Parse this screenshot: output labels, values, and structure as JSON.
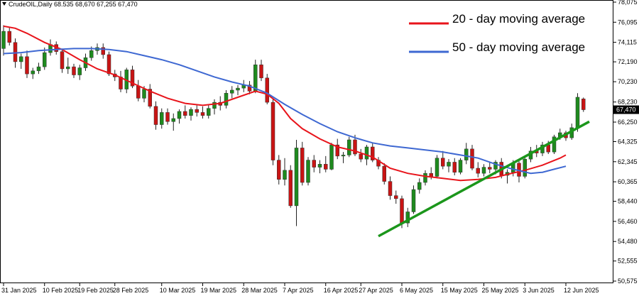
{
  "header": {
    "symbol_line": "CrudeOIL,Daily  68.535 68,670 67,255 67,470"
  },
  "chart_data": {
    "type": "candlestick",
    "title": "",
    "xlabel": "",
    "ylabel": "",
    "ylim": [
      50.575,
      78.075
    ],
    "y_ticks": [
      {
        "value": 78.075,
        "label": "78,075"
      },
      {
        "value": 76.095,
        "label": "76,095"
      },
      {
        "value": 74.115,
        "label": "74,115"
      },
      {
        "value": 72.19,
        "label": "72,190"
      },
      {
        "value": 70.23,
        "label": "70,230"
      },
      {
        "value": 68.23,
        "label": "68,230"
      },
      {
        "value": 66.25,
        "label": "66,250"
      },
      {
        "value": 64.325,
        "label": "64,325"
      },
      {
        "value": 62.345,
        "label": "62,345"
      },
      {
        "value": 60.365,
        "label": "60,365"
      },
      {
        "value": 58.44,
        "label": "58,440"
      },
      {
        "value": 56.46,
        "label": "56,460"
      },
      {
        "value": 54.48,
        "label": "54,480"
      },
      {
        "value": 52.555,
        "label": "52,555"
      },
      {
        "value": 50.575,
        "label": "50,575"
      }
    ],
    "x_ticks": [
      {
        "index": 0,
        "label": "31 Jan 2025"
      },
      {
        "index": 7,
        "label": "10 Feb 2025"
      },
      {
        "index": 13,
        "label": "19 Feb 2025"
      },
      {
        "index": 19,
        "label": "28 Feb 2025"
      },
      {
        "index": 27,
        "label": "10 Mar 2025"
      },
      {
        "index": 34,
        "label": "19 Mar 2025"
      },
      {
        "index": 41,
        "label": "28 Mar 2025"
      },
      {
        "index": 48,
        "label": "7 Apr 2025"
      },
      {
        "index": 55,
        "label": "16 Apr 2025"
      },
      {
        "index": 61,
        "label": "27 Apr 2025"
      },
      {
        "index": 68,
        "label": "6 May 2025"
      },
      {
        "index": 75,
        "label": "15 May 2025"
      },
      {
        "index": 82,
        "label": "25 May 2025"
      },
      {
        "index": 89,
        "label": "3 Jun 2025"
      },
      {
        "index": 96,
        "label": "12 Jun 2025"
      }
    ],
    "candles": [
      {
        "o": 73.5,
        "h": 75.8,
        "l": 72.8,
        "c": 75.2
      },
      {
        "o": 75.2,
        "h": 75.6,
        "l": 73.8,
        "c": 74.1
      },
      {
        "o": 74.1,
        "h": 74.5,
        "l": 71.6,
        "c": 72.2
      },
      {
        "o": 72.2,
        "h": 73.0,
        "l": 71.5,
        "c": 72.7
      },
      {
        "o": 72.7,
        "h": 73.3,
        "l": 70.6,
        "c": 71.0
      },
      {
        "o": 71.0,
        "h": 71.6,
        "l": 70.5,
        "c": 71.3
      },
      {
        "o": 71.3,
        "h": 72.1,
        "l": 71.0,
        "c": 71.7
      },
      {
        "o": 71.7,
        "h": 73.6,
        "l": 71.4,
        "c": 73.1
      },
      {
        "o": 73.1,
        "h": 74.4,
        "l": 72.8,
        "c": 73.9
      },
      {
        "o": 73.9,
        "h": 74.2,
        "l": 72.9,
        "c": 73.2
      },
      {
        "o": 73.2,
        "h": 73.5,
        "l": 71.1,
        "c": 71.5
      },
      {
        "o": 71.5,
        "h": 72.6,
        "l": 71.0,
        "c": 71.7
      },
      {
        "o": 71.7,
        "h": 72.0,
        "l": 70.6,
        "c": 70.9
      },
      {
        "o": 70.9,
        "h": 71.9,
        "l": 70.4,
        "c": 71.6
      },
      {
        "o": 71.6,
        "h": 73.0,
        "l": 71.3,
        "c": 72.6
      },
      {
        "o": 72.6,
        "h": 73.7,
        "l": 72.3,
        "c": 73.3
      },
      {
        "o": 73.3,
        "h": 74.0,
        "l": 72.9,
        "c": 73.6
      },
      {
        "o": 73.6,
        "h": 74.0,
        "l": 72.5,
        "c": 72.9
      },
      {
        "o": 72.9,
        "h": 73.2,
        "l": 70.8,
        "c": 71.0
      },
      {
        "o": 71.0,
        "h": 71.4,
        "l": 70.3,
        "c": 70.7
      },
      {
        "o": 70.7,
        "h": 71.3,
        "l": 69.2,
        "c": 69.5
      },
      {
        "o": 69.5,
        "h": 71.6,
        "l": 69.1,
        "c": 71.4
      },
      {
        "o": 71.4,
        "h": 71.8,
        "l": 69.6,
        "c": 69.8
      },
      {
        "o": 69.8,
        "h": 70.4,
        "l": 68.3,
        "c": 68.6
      },
      {
        "o": 68.6,
        "h": 69.8,
        "l": 68.2,
        "c": 69.5
      },
      {
        "o": 69.5,
        "h": 70.0,
        "l": 67.6,
        "c": 67.8
      },
      {
        "o": 67.8,
        "h": 68.3,
        "l": 65.5,
        "c": 66.0
      },
      {
        "o": 66.0,
        "h": 67.6,
        "l": 65.6,
        "c": 67.2
      },
      {
        "o": 67.2,
        "h": 67.6,
        "l": 66.0,
        "c": 66.3
      },
      {
        "o": 66.3,
        "h": 67.1,
        "l": 65.4,
        "c": 66.6
      },
      {
        "o": 66.6,
        "h": 67.5,
        "l": 66.1,
        "c": 67.3
      },
      {
        "o": 67.3,
        "h": 67.9,
        "l": 66.6,
        "c": 66.9
      },
      {
        "o": 66.9,
        "h": 67.7,
        "l": 66.4,
        "c": 67.5
      },
      {
        "o": 67.5,
        "h": 67.9,
        "l": 66.8,
        "c": 67.2
      },
      {
        "o": 67.2,
        "h": 67.8,
        "l": 66.6,
        "c": 66.9
      },
      {
        "o": 66.9,
        "h": 67.9,
        "l": 66.6,
        "c": 67.6
      },
      {
        "o": 67.6,
        "h": 68.5,
        "l": 67.0,
        "c": 68.2
      },
      {
        "o": 68.2,
        "h": 68.8,
        "l": 67.4,
        "c": 67.9
      },
      {
        "o": 67.9,
        "h": 69.4,
        "l": 67.6,
        "c": 69.1
      },
      {
        "o": 69.1,
        "h": 69.8,
        "l": 68.6,
        "c": 69.4
      },
      {
        "o": 69.4,
        "h": 69.9,
        "l": 68.9,
        "c": 69.6
      },
      {
        "o": 69.6,
        "h": 70.4,
        "l": 69.2,
        "c": 69.9
      },
      {
        "o": 69.9,
        "h": 70.3,
        "l": 69.0,
        "c": 69.3
      },
      {
        "o": 69.3,
        "h": 72.4,
        "l": 69.1,
        "c": 71.9
      },
      {
        "o": 71.9,
        "h": 72.4,
        "l": 70.3,
        "c": 70.6
      },
      {
        "o": 70.6,
        "h": 71.0,
        "l": 68.0,
        "c": 68.2
      },
      {
        "o": 68.2,
        "h": 68.5,
        "l": 62.0,
        "c": 62.5
      },
      {
        "o": 62.5,
        "h": 63.0,
        "l": 60.1,
        "c": 60.6
      },
      {
        "o": 60.6,
        "h": 62.7,
        "l": 60.0,
        "c": 61.5
      },
      {
        "o": 61.5,
        "h": 62.0,
        "l": 57.8,
        "c": 58.0
      },
      {
        "o": 58.0,
        "h": 64.5,
        "l": 56.0,
        "c": 63.7
      },
      {
        "o": 63.7,
        "h": 64.3,
        "l": 60.0,
        "c": 60.3
      },
      {
        "o": 60.3,
        "h": 62.8,
        "l": 60.0,
        "c": 62.5
      },
      {
        "o": 62.5,
        "h": 63.0,
        "l": 61.3,
        "c": 61.8
      },
      {
        "o": 61.8,
        "h": 62.5,
        "l": 61.2,
        "c": 62.1
      },
      {
        "o": 62.1,
        "h": 62.9,
        "l": 61.3,
        "c": 61.6
      },
      {
        "o": 61.6,
        "h": 64.2,
        "l": 61.5,
        "c": 64.0
      },
      {
        "o": 64.0,
        "h": 64.6,
        "l": 62.6,
        "c": 62.9
      },
      {
        "o": 62.9,
        "h": 63.3,
        "l": 62.2,
        "c": 63.0
      },
      {
        "o": 63.0,
        "h": 64.8,
        "l": 62.8,
        "c": 64.5
      },
      {
        "o": 64.5,
        "h": 65.0,
        "l": 62.9,
        "c": 63.1
      },
      {
        "o": 63.1,
        "h": 63.6,
        "l": 62.3,
        "c": 62.6
      },
      {
        "o": 62.6,
        "h": 64.0,
        "l": 62.0,
        "c": 63.8
      },
      {
        "o": 63.8,
        "h": 64.2,
        "l": 62.3,
        "c": 62.5
      },
      {
        "o": 62.5,
        "h": 62.8,
        "l": 61.6,
        "c": 61.9
      },
      {
        "o": 61.9,
        "h": 62.2,
        "l": 60.1,
        "c": 60.4
      },
      {
        "o": 60.4,
        "h": 60.9,
        "l": 58.6,
        "c": 59.0
      },
      {
        "o": 59.0,
        "h": 59.5,
        "l": 58.2,
        "c": 58.7
      },
      {
        "o": 58.7,
        "h": 59.0,
        "l": 55.8,
        "c": 56.3
      },
      {
        "o": 56.3,
        "h": 57.8,
        "l": 55.9,
        "c": 57.4
      },
      {
        "o": 57.4,
        "h": 60.0,
        "l": 57.2,
        "c": 59.6
      },
      {
        "o": 59.6,
        "h": 60.7,
        "l": 59.2,
        "c": 60.3
      },
      {
        "o": 60.3,
        "h": 61.5,
        "l": 60.0,
        "c": 61.2
      },
      {
        "o": 61.2,
        "h": 61.8,
        "l": 60.6,
        "c": 60.9
      },
      {
        "o": 60.9,
        "h": 63.0,
        "l": 60.7,
        "c": 62.7
      },
      {
        "o": 62.7,
        "h": 63.4,
        "l": 61.6,
        "c": 61.9
      },
      {
        "o": 61.9,
        "h": 62.6,
        "l": 61.3,
        "c": 62.3
      },
      {
        "o": 62.3,
        "h": 62.7,
        "l": 61.0,
        "c": 61.3
      },
      {
        "o": 61.3,
        "h": 62.7,
        "l": 61.1,
        "c": 62.5
      },
      {
        "o": 62.5,
        "h": 64.2,
        "l": 62.1,
        "c": 63.6
      },
      {
        "o": 63.6,
        "h": 64.0,
        "l": 61.5,
        "c": 61.7
      },
      {
        "o": 61.7,
        "h": 62.3,
        "l": 60.8,
        "c": 61.2
      },
      {
        "o": 61.2,
        "h": 62.1,
        "l": 60.9,
        "c": 61.8
      },
      {
        "o": 61.8,
        "h": 62.3,
        "l": 61.2,
        "c": 61.6
      },
      {
        "o": 61.6,
        "h": 62.5,
        "l": 61.1,
        "c": 62.3
      },
      {
        "o": 62.3,
        "h": 62.7,
        "l": 60.7,
        "c": 61.0
      },
      {
        "o": 61.0,
        "h": 61.6,
        "l": 60.2,
        "c": 61.3
      },
      {
        "o": 61.3,
        "h": 62.5,
        "l": 60.9,
        "c": 62.2
      },
      {
        "o": 62.2,
        "h": 62.6,
        "l": 60.3,
        "c": 60.9
      },
      {
        "o": 60.9,
        "h": 62.9,
        "l": 60.7,
        "c": 62.6
      },
      {
        "o": 62.6,
        "h": 63.8,
        "l": 62.3,
        "c": 63.4
      },
      {
        "o": 63.4,
        "h": 64.0,
        "l": 62.8,
        "c": 63.2
      },
      {
        "o": 63.2,
        "h": 64.3,
        "l": 62.9,
        "c": 64.0
      },
      {
        "o": 64.0,
        "h": 64.4,
        "l": 63.1,
        "c": 63.3
      },
      {
        "o": 63.3,
        "h": 65.0,
        "l": 63.1,
        "c": 64.8
      },
      {
        "o": 64.8,
        "h": 65.6,
        "l": 64.5,
        "c": 65.2
      },
      {
        "o": 65.2,
        "h": 65.4,
        "l": 64.4,
        "c": 64.7
      },
      {
        "o": 64.7,
        "h": 66.1,
        "l": 64.5,
        "c": 65.7
      },
      {
        "o": 65.7,
        "h": 69.1,
        "l": 65.3,
        "c": 68.7
      },
      {
        "o": 68.535,
        "h": 68.67,
        "l": 67.255,
        "c": 67.47
      }
    ],
    "series": [
      {
        "name": "20 - day moving average",
        "color": "#e8141b",
        "points": [
          [
            0,
            75.7
          ],
          [
            2,
            75.5
          ],
          [
            4,
            75.0
          ],
          [
            7,
            74.1
          ],
          [
            10,
            73.4
          ],
          [
            13,
            72.4
          ],
          [
            16,
            71.5
          ],
          [
            19,
            70.9
          ],
          [
            22,
            70.1
          ],
          [
            25,
            69.3
          ],
          [
            28,
            68.6
          ],
          [
            31,
            68.1
          ],
          [
            34,
            67.9
          ],
          [
            37,
            68.1
          ],
          [
            40,
            68.7
          ],
          [
            43,
            69.3
          ],
          [
            45,
            69.0
          ],
          [
            47,
            68.1
          ],
          [
            49,
            66.6
          ],
          [
            51,
            65.6
          ],
          [
            54,
            64.6
          ],
          [
            57,
            63.8
          ],
          [
            60,
            63.4
          ],
          [
            63,
            62.8
          ],
          [
            66,
            61.7
          ],
          [
            69,
            61.2
          ],
          [
            72,
            60.9
          ],
          [
            75,
            60.7
          ],
          [
            78,
            60.5
          ],
          [
            81,
            60.6
          ],
          [
            84,
            60.8
          ],
          [
            86,
            61.1
          ],
          [
            89,
            61.5
          ],
          [
            92,
            62.0
          ],
          [
            95,
            62.7
          ],
          [
            96,
            63.0
          ]
        ]
      },
      {
        "name": "50 - day moving average",
        "color": "#3e68d2",
        "points": [
          [
            0,
            73.0
          ],
          [
            3,
            73.1
          ],
          [
            6,
            73.3
          ],
          [
            9,
            73.4
          ],
          [
            12,
            73.5
          ],
          [
            15,
            73.5
          ],
          [
            18,
            73.4
          ],
          [
            21,
            73.2
          ],
          [
            24,
            72.8
          ],
          [
            27,
            72.4
          ],
          [
            30,
            71.9
          ],
          [
            33,
            71.3
          ],
          [
            36,
            70.7
          ],
          [
            39,
            70.2
          ],
          [
            42,
            69.8
          ],
          [
            45,
            69.1
          ],
          [
            48,
            68.0
          ],
          [
            51,
            67.0
          ],
          [
            54,
            66.1
          ],
          [
            57,
            65.3
          ],
          [
            60,
            64.7
          ],
          [
            63,
            64.2
          ],
          [
            66,
            63.9
          ],
          [
            69,
            63.7
          ],
          [
            72,
            63.5
          ],
          [
            75,
            63.3
          ],
          [
            78,
            63.0
          ],
          [
            81,
            62.7
          ],
          [
            84,
            62.1
          ],
          [
            87,
            61.6
          ],
          [
            90,
            61.2
          ],
          [
            92,
            61.3
          ],
          [
            94,
            61.6
          ],
          [
            96,
            61.9
          ]
        ]
      }
    ],
    "trendline": {
      "color": "#1b961b",
      "from": [
        64,
        55.0
      ],
      "to": [
        100,
        66.3
      ]
    },
    "last_price": {
      "value": 67.47,
      "label": "67,470",
      "color": "#000000"
    },
    "legend_position": "top-right",
    "colors": {
      "up": "#1e8a1e",
      "down": "#c81414",
      "wick": "#222222",
      "grid": "#e0e0e0"
    }
  }
}
